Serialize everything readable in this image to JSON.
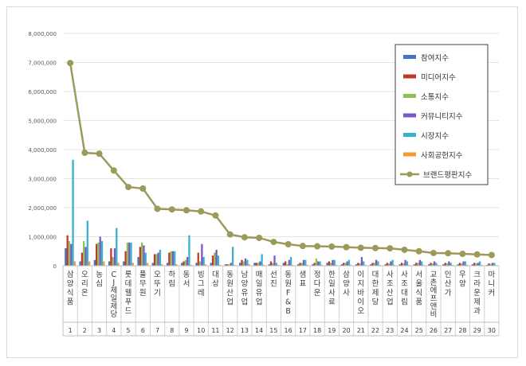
{
  "chart_data": {
    "type": "bar",
    "categories": [
      "삼양식품",
      "오리온",
      "농심",
      "CJ제일제당",
      "롯데웰푸드",
      "풀무원",
      "오뚜기",
      "하림",
      "동서",
      "빙그레",
      "대상",
      "동원산업",
      "남양유업",
      "매일유업",
      "선진",
      "동원F&B",
      "샘표",
      "정다운",
      "한일사료",
      "삼양사",
      "이지바이오",
      "대한제당",
      "사조산업",
      "사조대림",
      "서울식품",
      "교촌에프앤비",
      "인산가",
      "우양",
      "크라운제과",
      "마니커"
    ],
    "index_labels": [
      "1",
      "2",
      "3",
      "4",
      "5",
      "6",
      "7",
      "8",
      "9",
      "10",
      "11",
      "12",
      "13",
      "14",
      "15",
      "16",
      "17",
      "18",
      "19",
      "20",
      "21",
      "22",
      "23",
      "24",
      "25",
      "26",
      "27",
      "28",
      "29",
      "30"
    ],
    "series": [
      {
        "name": "참여지수",
        "color": "#4472c4",
        "values": [
          600000,
          150000,
          200000,
          150000,
          150000,
          300000,
          100000,
          100000,
          100000,
          100000,
          100000,
          50000,
          100000,
          100000,
          50000,
          100000,
          50000,
          50000,
          100000,
          50000,
          50000,
          50000,
          50000,
          50000,
          50000,
          50000,
          50000,
          50000,
          50000,
          30000
        ]
      },
      {
        "name": "미디어지수",
        "color": "#c0392b",
        "values": [
          1050000,
          450000,
          750000,
          600000,
          500000,
          650000,
          400000,
          450000,
          150000,
          450000,
          350000,
          50000,
          200000,
          100000,
          150000,
          150000,
          100000,
          100000,
          150000,
          100000,
          100000,
          100000,
          100000,
          100000,
          100000,
          100000,
          100000,
          100000,
          100000,
          80000
        ]
      },
      {
        "name": "소통지수",
        "color": "#8cc152",
        "values": [
          850000,
          850000,
          800000,
          300000,
          800000,
          800000,
          400000,
          500000,
          200000,
          150000,
          450000,
          50000,
          150000,
          100000,
          100000,
          50000,
          100000,
          250000,
          100000,
          100000,
          80000,
          100000,
          80000,
          80000,
          100000,
          80000,
          80000,
          80000,
          80000,
          60000
        ]
      },
      {
        "name": "커뮤니티지수",
        "color": "#7e57c2",
        "values": [
          750000,
          650000,
          1000000,
          600000,
          800000,
          700000,
          450000,
          500000,
          300000,
          750000,
          550000,
          100000,
          250000,
          150000,
          350000,
          200000,
          200000,
          150000,
          200000,
          150000,
          300000,
          200000,
          150000,
          200000,
          200000,
          150000,
          150000,
          150000,
          100000,
          100000
        ]
      },
      {
        "name": "시장지수",
        "color": "#36b1cf",
        "values": [
          3650000,
          1550000,
          850000,
          1300000,
          800000,
          450000,
          550000,
          500000,
          1050000,
          300000,
          350000,
          650000,
          200000,
          400000,
          100000,
          300000,
          200000,
          150000,
          200000,
          200000,
          150000,
          150000,
          200000,
          150000,
          150000,
          100000,
          100000,
          150000,
          150000,
          100000
        ]
      },
      {
        "name": "사회공헌지수",
        "color": "#f39c34",
        "values": [
          150000,
          150000,
          150000,
          100000,
          100000,
          100000,
          50000,
          50000,
          30000,
          50000,
          30000,
          30000,
          50000,
          30000,
          30000,
          30000,
          30000,
          30000,
          30000,
          30000,
          30000,
          30000,
          30000,
          30000,
          30000,
          30000,
          30000,
          30000,
          30000,
          20000
        ]
      }
    ],
    "line": {
      "name": "브랜드평판지수",
      "color": "#9c9a5b",
      "values": [
        6980000,
        3890000,
        3860000,
        3280000,
        2710000,
        2660000,
        1960000,
        1940000,
        1910000,
        1870000,
        1730000,
        1080000,
        980000,
        960000,
        820000,
        740000,
        680000,
        670000,
        660000,
        640000,
        620000,
        610000,
        600000,
        550000,
        500000,
        440000,
        430000,
        410000,
        390000,
        370000
      ]
    },
    "y_ticks": [
      "0",
      "1,000,000",
      "2,000,000",
      "3,000,000",
      "4,000,000",
      "5,000,000",
      "6,000,000",
      "7,000,000",
      "8,000,000"
    ],
    "y_tick_values": [
      0,
      1000000,
      2000000,
      3000000,
      4000000,
      5000000,
      6000000,
      7000000,
      8000000
    ],
    "ylim": [
      0,
      8000000
    ],
    "grid": true,
    "legend_position": "right"
  }
}
